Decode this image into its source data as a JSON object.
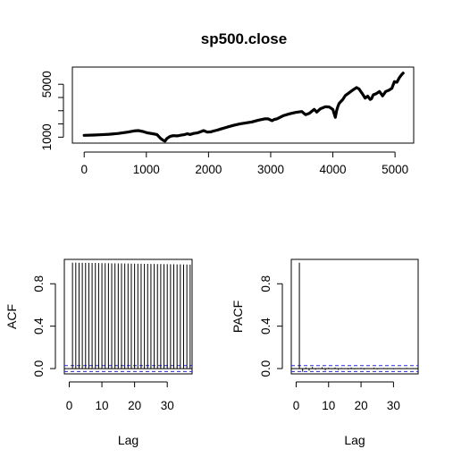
{
  "title": "sp500.close",
  "chart_data": [
    {
      "type": "line",
      "title": "sp500.close",
      "xlabel": "",
      "ylabel": "",
      "xlim": [
        -190,
        5300
      ],
      "ylim": [
        550,
        6300
      ],
      "xticks": [
        0,
        1000,
        2000,
        3000,
        4000,
        5000
      ],
      "xtick_labels": [
        "0",
        "1000",
        "2000",
        "3000",
        "4000",
        "5000"
      ],
      "yticks": [
        1000,
        2000,
        3000,
        4000,
        5000
      ],
      "ytick_labels": [
        "1000",
        "",
        "",
        "",
        "5000"
      ],
      "grid": false,
      "series": [
        {
          "x": [
            0,
            150,
            250,
            400,
            550,
            700,
            800,
            870,
            950,
            1020,
            1100,
            1170,
            1230,
            1270,
            1300,
            1330,
            1380,
            1430,
            1500,
            1560,
            1620,
            1660,
            1700,
            1760,
            1820,
            1880,
            1920,
            1980,
            2040,
            2080,
            2140,
            2200,
            2300,
            2400,
            2500,
            2600,
            2700,
            2800,
            2900,
            2960,
            3020,
            3060,
            3100,
            3200,
            3300,
            3400,
            3500,
            3560,
            3620,
            3660,
            3700,
            3740,
            3800,
            3880,
            3940,
            4000,
            4040,
            4060,
            4080,
            4100,
            4130,
            4160,
            4200,
            4260,
            4320,
            4380,
            4420,
            4470,
            4520,
            4560,
            4600,
            4620,
            4650,
            4700,
            4750,
            4800,
            4850,
            4900,
            4950,
            4990,
            5030,
            5070,
            5110,
            5130
          ],
          "values": [
            1140,
            1160,
            1180,
            1220,
            1280,
            1380,
            1470,
            1500,
            1420,
            1320,
            1260,
            1200,
            900,
            760,
            700,
            900,
            1050,
            1110,
            1100,
            1150,
            1200,
            1260,
            1200,
            1280,
            1320,
            1420,
            1500,
            1380,
            1400,
            1460,
            1530,
            1620,
            1760,
            1890,
            2000,
            2080,
            2150,
            2280,
            2380,
            2380,
            2250,
            2340,
            2380,
            2620,
            2760,
            2870,
            2940,
            2700,
            2800,
            2950,
            3100,
            2900,
            3150,
            3300,
            3280,
            3100,
            2500,
            3000,
            3300,
            3550,
            3700,
            3850,
            4150,
            4350,
            4560,
            4750,
            4650,
            4320,
            3950,
            4100,
            3850,
            3900,
            4200,
            4300,
            4450,
            4120,
            4450,
            4550,
            4700,
            5200,
            5150,
            5500,
            5750,
            5850
          ]
        }
      ]
    },
    {
      "type": "bar",
      "title": "",
      "xlabel": "Lag",
      "ylabel": "ACF",
      "xlim": [
        -1.5,
        37.6
      ],
      "ylim": [
        -0.05,
        1.03
      ],
      "xticks": [
        0,
        10,
        20,
        30
      ],
      "xtick_labels": [
        "0",
        "10",
        "20",
        "30"
      ],
      "yticks": [
        0,
        0.4,
        0.8
      ],
      "ytick_labels": [
        "0.0",
        "0.4",
        "0.8"
      ],
      "confidence_band": 0.028,
      "lags": [
        1,
        2,
        3,
        4,
        5,
        6,
        7,
        8,
        9,
        10,
        11,
        12,
        13,
        14,
        15,
        16,
        17,
        18,
        19,
        20,
        21,
        22,
        23,
        24,
        25,
        26,
        27,
        28,
        29,
        30,
        31,
        32,
        33,
        34,
        35,
        36,
        37
      ],
      "values": [
        0.999,
        0.999,
        0.998,
        0.998,
        0.997,
        0.997,
        0.996,
        0.996,
        0.995,
        0.995,
        0.994,
        0.994,
        0.993,
        0.993,
        0.992,
        0.992,
        0.991,
        0.991,
        0.99,
        0.99,
        0.989,
        0.989,
        0.988,
        0.988,
        0.987,
        0.987,
        0.986,
        0.986,
        0.985,
        0.985,
        0.984,
        0.984,
        0.983,
        0.983,
        0.982,
        0.982,
        0.981
      ]
    },
    {
      "type": "bar",
      "title": "",
      "xlabel": "Lag",
      "ylabel": "PACF",
      "xlim": [
        -1.5,
        37.6
      ],
      "ylim": [
        -0.05,
        1.03
      ],
      "xticks": [
        0,
        10,
        20,
        30
      ],
      "xtick_labels": [
        "0",
        "10",
        "20",
        "30"
      ],
      "yticks": [
        0,
        0.4,
        0.8
      ],
      "ytick_labels": [
        "0.0",
        "0.4",
        "0.8"
      ],
      "confidence_band": 0.028,
      "lags": [
        1,
        2,
        3,
        4,
        5,
        6,
        7,
        8,
        9,
        10,
        11,
        12,
        13,
        14,
        15,
        16,
        17,
        18,
        19,
        20,
        21,
        22,
        23,
        24,
        25,
        26,
        27,
        28,
        29,
        30,
        31,
        32,
        33,
        34,
        35,
        36,
        37
      ],
      "values": [
        0.999,
        -0.03,
        0.01,
        -0.02,
        0.015,
        -0.01,
        0.005,
        0.012,
        -0.015,
        0.008,
        -0.005,
        0.01,
        -0.012,
        0.006,
        0.004,
        -0.008,
        0.009,
        -0.006,
        0.003,
        0.007,
        -0.009,
        0.005,
        -0.004,
        0.008,
        -0.007,
        0.002,
        0.006,
        -0.005,
        0.004,
        -0.006,
        0.003,
        0.005,
        -0.004,
        0.006,
        -0.003,
        0.004,
        -0.005
      ]
    }
  ]
}
